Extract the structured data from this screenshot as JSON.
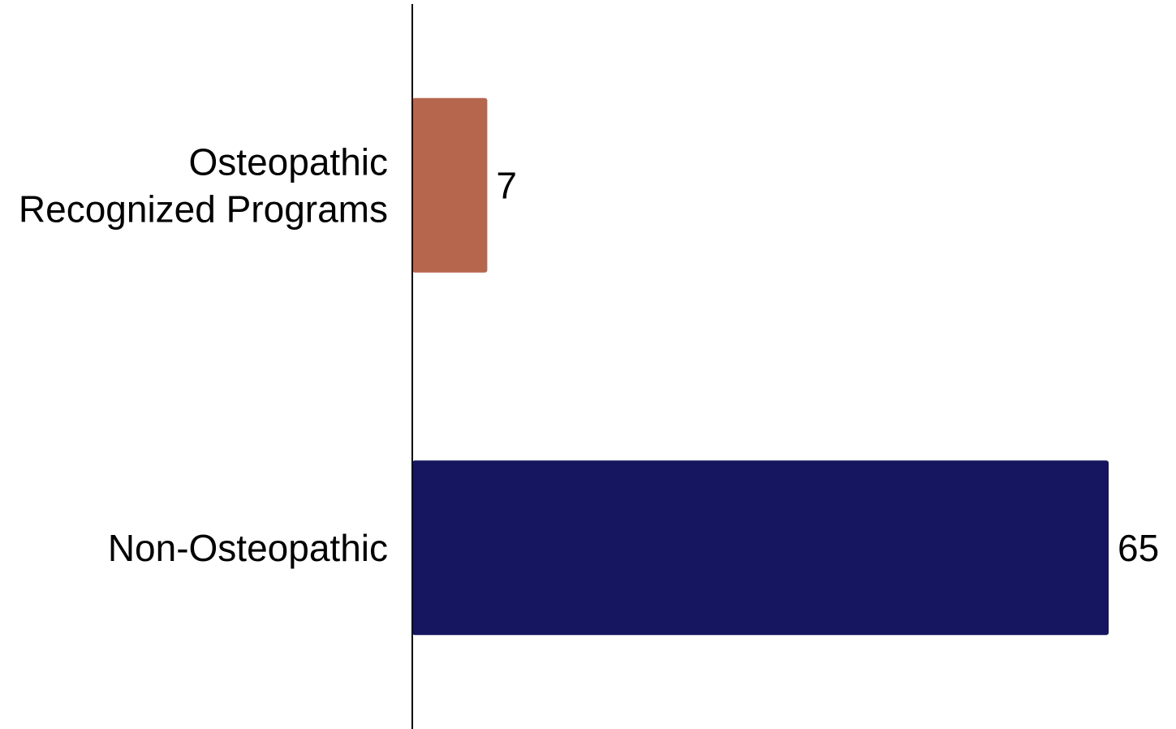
{
  "chart_data": {
    "type": "bar",
    "orientation": "horizontal",
    "categories": [
      [
        "Osteopathic",
        "Recognized Programs"
      ],
      [
        "Non-Osteopathic"
      ]
    ],
    "values": [
      7,
      65
    ],
    "data_labels": [
      "7",
      "65"
    ],
    "colors": [
      "#B7664E",
      "#151560"
    ],
    "xlim": [
      0,
      65
    ],
    "title": "",
    "xlabel": "",
    "ylabel": "",
    "grid": false,
    "legend": "none"
  }
}
